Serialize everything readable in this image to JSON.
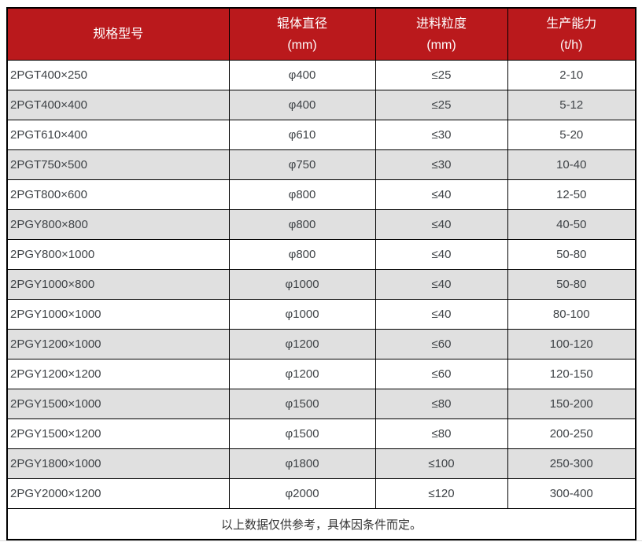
{
  "table": {
    "columns": [
      {
        "label": "规格型号",
        "sub": ""
      },
      {
        "label": "辊体直径",
        "sub": "(mm)"
      },
      {
        "label": "进料粒度",
        "sub": "(mm)"
      },
      {
        "label": "生产能力",
        "sub": "(t/h)"
      }
    ],
    "rows": [
      [
        "2PGT400×250",
        "φ400",
        "≤25",
        "2-10"
      ],
      [
        "2PGT400×400",
        "φ400",
        "≤25",
        "5-12"
      ],
      [
        "2PGT610×400",
        "φ610",
        "≤30",
        "5-20"
      ],
      [
        "2PGT750×500",
        "φ750",
        "≤30",
        "10-40"
      ],
      [
        "2PGT800×600",
        "φ800",
        "≤40",
        "12-50"
      ],
      [
        "2PGY800×800",
        "φ800",
        "≤40",
        "40-50"
      ],
      [
        "2PGY800×1000",
        "φ800",
        "≤40",
        "50-80"
      ],
      [
        "2PGY1000×800",
        "φ1000",
        "≤40",
        "50-80"
      ],
      [
        "2PGY1000×1000",
        "φ1000",
        "≤40",
        "80-100"
      ],
      [
        "2PGY1200×1000",
        "φ1200",
        "≤60",
        "100-120"
      ],
      [
        "2PGY1200×1200",
        "φ1200",
        "≤60",
        "120-150"
      ],
      [
        "2PGY1500×1000",
        "φ1500",
        "≤80",
        "150-200"
      ],
      [
        "2PGY1500×1200",
        "φ1500",
        "≤80",
        "200-250"
      ],
      [
        "2PGY1800×1000",
        "φ1800",
        "≤100",
        "250-300"
      ],
      [
        "2PGY2000×1200",
        "φ2000",
        "≤120",
        "300-400"
      ]
    ],
    "footer": "以上数据仅供参考，具体因条件而定。"
  },
  "colors": {
    "header_bg": "#ba191c",
    "header_text": "#ffffff",
    "row_bg": "#ffffff",
    "row_alt_bg": "#e0e0e0",
    "border": "#000000",
    "body_text": "#3f4347"
  }
}
